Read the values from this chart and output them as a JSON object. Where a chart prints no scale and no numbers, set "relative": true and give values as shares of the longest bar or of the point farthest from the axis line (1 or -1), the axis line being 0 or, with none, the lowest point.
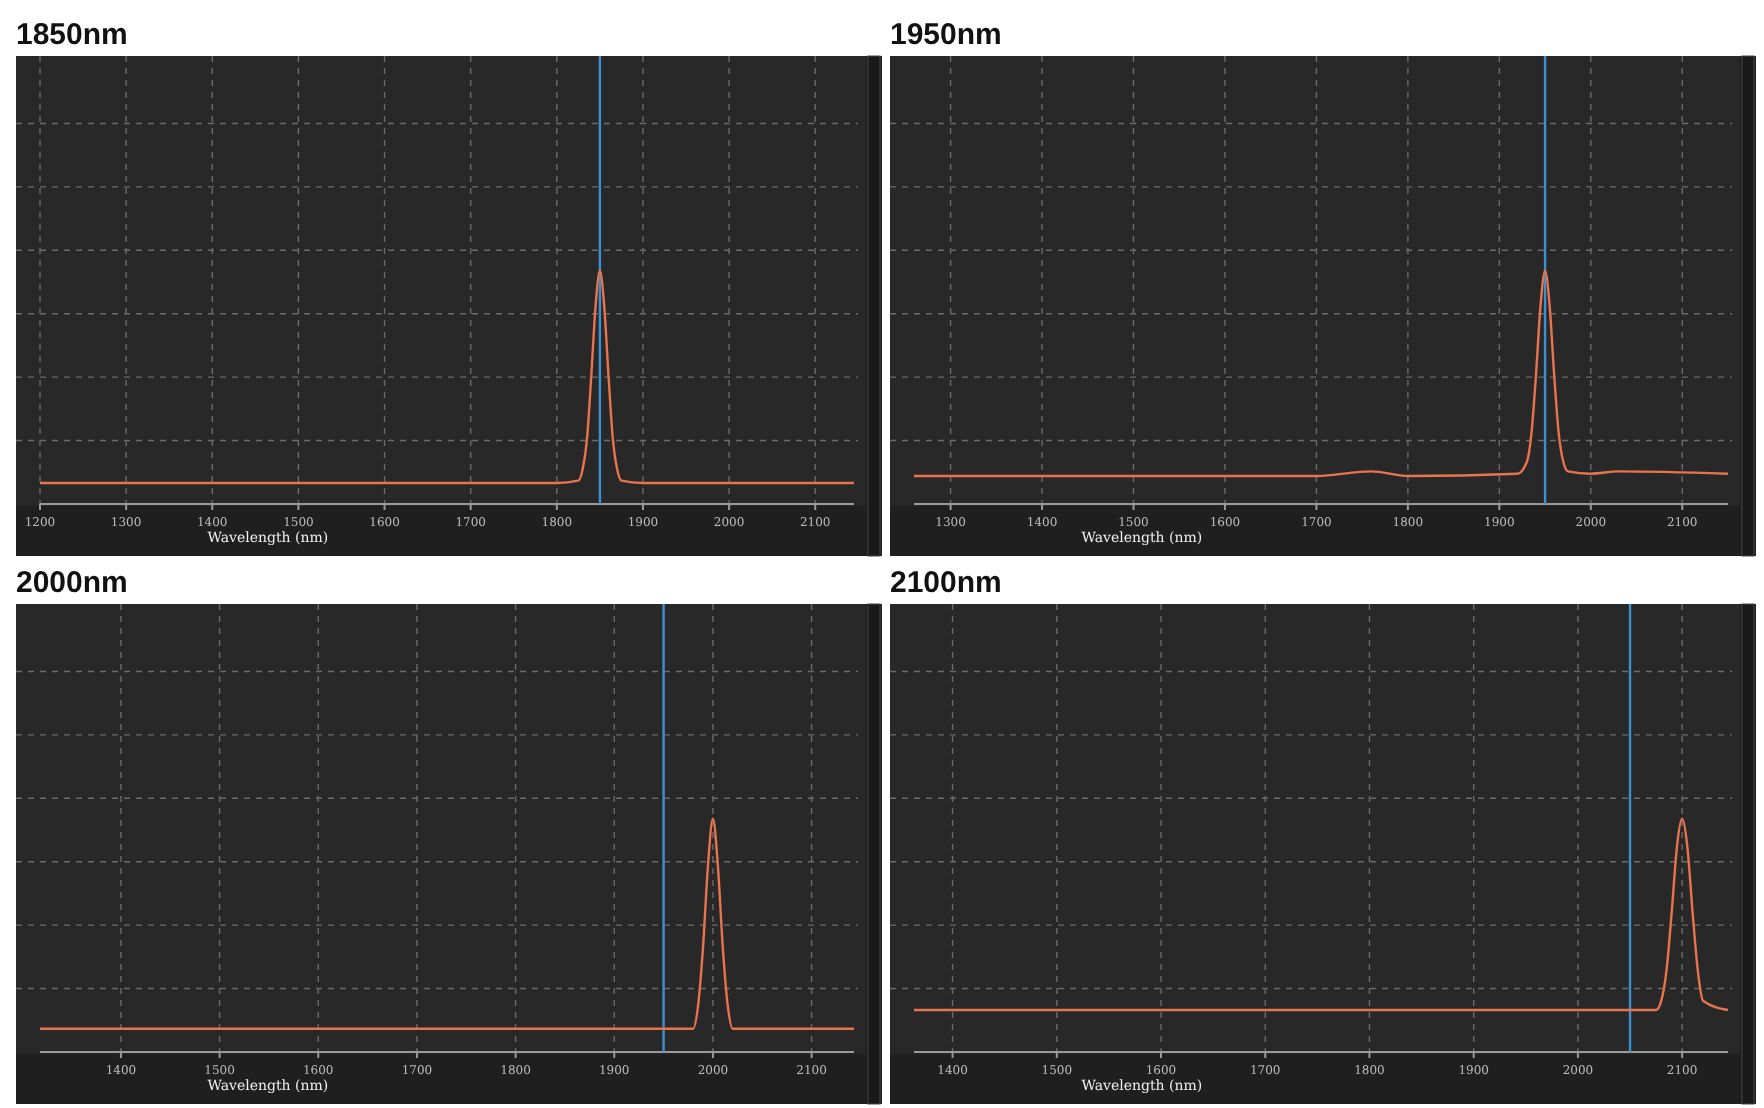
{
  "chart_data": [
    {
      "type": "line",
      "title": "1850nm",
      "xlabel": "Wavelength (nm)",
      "relative": true,
      "grid": true,
      "xlim": [
        1200,
        2145
      ],
      "xticks": [
        1200,
        1300,
        1400,
        1500,
        1600,
        1700,
        1800,
        1900,
        2000,
        2100
      ],
      "series": [
        {
          "color": "#e8744e",
          "x": [
            1200,
            1500,
            1800,
            1825,
            1830,
            1835,
            1840,
            1845,
            1850,
            1855,
            1860,
            1865,
            1870,
            1875,
            1900,
            2145
          ],
          "values": [
            0.09,
            0.09,
            0.09,
            0.1,
            0.15,
            0.28,
            0.55,
            0.85,
            1,
            0.85,
            0.55,
            0.28,
            0.15,
            0.1,
            0.09,
            0.09
          ]
        }
      ],
      "ref_lines": [
        {
          "axis": "x",
          "value": 1850,
          "color": "#3d8fd0"
        }
      ]
    },
    {
      "type": "line",
      "title": "1950nm",
      "xlabel": "Wavelength (nm)",
      "relative": true,
      "grid": true,
      "xlim": [
        1260,
        2150
      ],
      "xticks": [
        1300,
        1400,
        1500,
        1600,
        1700,
        1800,
        1900,
        2000,
        2100
      ],
      "series": [
        {
          "color": "#e8744e",
          "x": [
            1260,
            1700,
            1760,
            1800,
            1920,
            1930,
            1935,
            1940,
            1945,
            1950,
            1955,
            1960,
            1965,
            1970,
            1975,
            2000,
            2030,
            2150
          ],
          "values": [
            0.12,
            0.12,
            0.14,
            0.12,
            0.13,
            0.18,
            0.3,
            0.55,
            0.85,
            1,
            0.85,
            0.55,
            0.3,
            0.18,
            0.14,
            0.13,
            0.14,
            0.13
          ]
        }
      ],
      "ref_lines": [
        {
          "axis": "x",
          "value": 1950,
          "color": "#3d8fd0"
        }
      ]
    },
    {
      "type": "line",
      "title": "2000nm",
      "xlabel": "Wavelength (nm)",
      "relative": true,
      "grid": true,
      "xlim": [
        1318,
        2143
      ],
      "xticks": [
        1400,
        1500,
        1600,
        1700,
        1800,
        1900,
        2000,
        2100
      ],
      "series": [
        {
          "color": "#e8744e",
          "x": [
            1318,
            1700,
            1980,
            1985,
            1990,
            1995,
            2000,
            2005,
            2010,
            2015,
            2020,
            2143
          ],
          "values": [
            0.1,
            0.1,
            0.1,
            0.2,
            0.45,
            0.8,
            1,
            0.8,
            0.45,
            0.2,
            0.1,
            0.1
          ]
        }
      ],
      "ref_lines": [
        {
          "axis": "x",
          "value": 1950,
          "color": "#3d8fd0"
        }
      ]
    },
    {
      "type": "line",
      "title": "2100nm",
      "xlabel": "Wavelength (nm)",
      "relative": true,
      "grid": true,
      "xlim": [
        1363,
        2144
      ],
      "xticks": [
        1400,
        1500,
        1600,
        1700,
        1800,
        1900,
        2000,
        2100
      ],
      "series": [
        {
          "color": "#e8744e",
          "x": [
            1363,
            1800,
            2075,
            2080,
            2085,
            2090,
            2095,
            2100,
            2105,
            2110,
            2115,
            2120,
            2144
          ],
          "values": [
            0.18,
            0.18,
            0.18,
            0.22,
            0.35,
            0.6,
            0.88,
            1,
            0.88,
            0.6,
            0.35,
            0.22,
            0.18
          ]
        }
      ],
      "ref_lines": [
        {
          "axis": "x",
          "value": 2050,
          "color": "#3d8fd0"
        }
      ]
    }
  ]
}
